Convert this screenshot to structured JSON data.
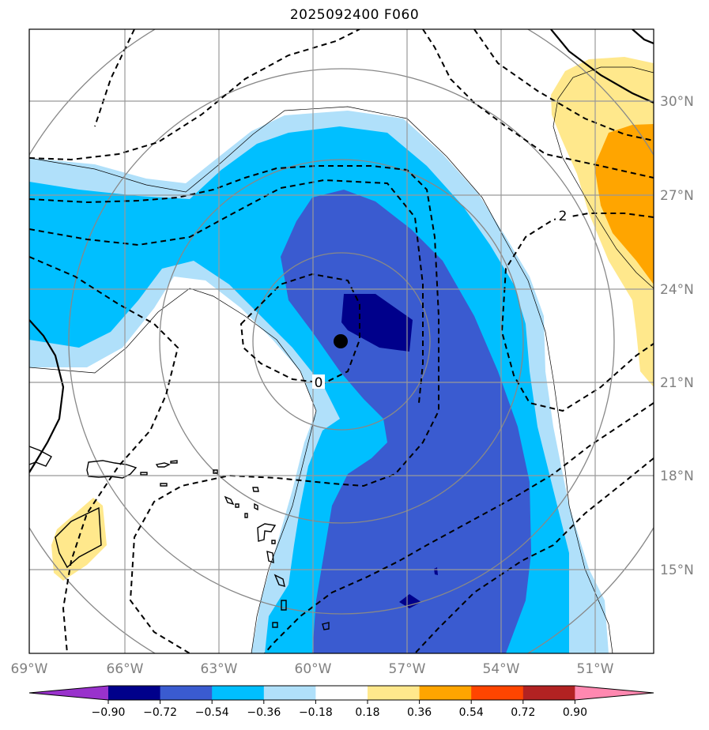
{
  "title": "2025092400 F060",
  "map": {
    "lon_labels": [
      "69°W",
      "66°W",
      "63°W",
      "60°W",
      "57°W",
      "54°W",
      "51°W"
    ],
    "lon_values": [
      -69,
      -66,
      -63,
      -60,
      -57,
      -54,
      -51
    ],
    "lat_labels": [
      "30°N",
      "27°N",
      "24°N",
      "21°N",
      "18°N",
      "15°N"
    ],
    "lat_values": [
      30,
      27,
      24,
      21,
      18,
      15
    ],
    "contour_labels": [
      "0",
      "2"
    ],
    "storm_center": {
      "lon": -59.0,
      "lat": 22.4
    },
    "colors": {
      "lightblue": "#b0e0fa",
      "deepskyblue": "#00bfff",
      "royalblue": "#3a5bd0",
      "navy": "#00008b",
      "lightyellow": "#ffe88c",
      "orange": "#ffa500"
    }
  },
  "colorbar": {
    "tick_labels": [
      "−0.90",
      "−0.72",
      "−0.54",
      "−0.36",
      "−0.18",
      "0.18",
      "0.36",
      "0.54",
      "0.72",
      "0.90"
    ],
    "colors": [
      "#9932cc",
      "#00008b",
      "#3a5bd0",
      "#00bfff",
      "#b0e0fa",
      "#ffffff",
      "#ffe88c",
      "#ffa500",
      "#ff4500",
      "#b22222",
      "#ff88b0"
    ]
  }
}
